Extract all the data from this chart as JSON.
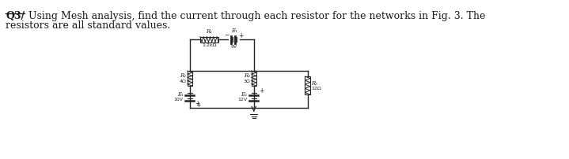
{
  "title_bold": "Q3/",
  "title_text": " Using Mesh analysis, find the current through each resistor for the networks in Fig. 3. The",
  "subtitle_text": "resistors are all standard values.",
  "text_color": "#1a1a1a",
  "lc": "#222222",
  "R1_label": "R₁",
  "R1_value": "1.2kΩ",
  "E1_top_label": "E₁",
  "E1_top_value": "9V",
  "R2_label": "R₂",
  "R2_value": "4Ω",
  "R3_label": "R₃",
  "R3_value": "3Ω",
  "E1_bot_label": "E₁",
  "E1_bot_value": "10V",
  "E2_bot_label": "E₂",
  "E2_bot_value": "12V",
  "R5_label": "R₅",
  "R5_value": "12Ω"
}
